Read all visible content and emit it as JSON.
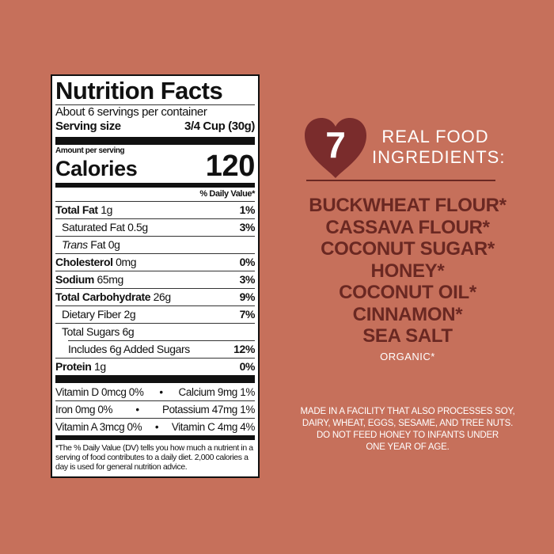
{
  "colors": {
    "background": "#c6705b",
    "ingredient_text": "#6a2822",
    "heart": "#7a2c2c"
  },
  "nutrition": {
    "title": "Nutrition Facts",
    "servings": "About 6 servings per container",
    "serving_size_label": "Serving size",
    "serving_size_value": "3/4 Cup (30g)",
    "amount_per_serving": "Amount per serving",
    "calories_label": "Calories",
    "calories_value": "120",
    "dv_header": "% Daily Value*",
    "rows": [
      {
        "name": "Total Fat",
        "amount": "1g",
        "dv": "1%"
      },
      {
        "name": "Saturated Fat",
        "amount": "0.5g",
        "dv": "3%"
      },
      {
        "name_italic": "Trans",
        "name": "Fat",
        "amount": "0g",
        "dv": ""
      },
      {
        "name": "Cholesterol",
        "amount": "0mg",
        "dv": "0%"
      },
      {
        "name": "Sodium",
        "amount": "65mg",
        "dv": "3%"
      },
      {
        "name": "Total Carbohydrate",
        "amount": "26g",
        "dv": "9%"
      },
      {
        "name": "Dietary Fiber",
        "amount": "2g",
        "dv": "7%"
      },
      {
        "name": "Total Sugars",
        "amount": "6g",
        "dv": ""
      },
      {
        "name": "Includes 6g Added Sugars",
        "amount": "",
        "dv": "12%"
      },
      {
        "name": "Protein",
        "amount": "1g",
        "dv": "0%"
      }
    ],
    "vitamins": [
      {
        "left": "Vitamin D 0mcg 0%",
        "right": "Calcium 9mg 1%"
      },
      {
        "left": "Iron 0mg 0%",
        "right": "Potassium 47mg 1%"
      },
      {
        "left": "Vitamin A 3mcg 0%",
        "right": "Vitamin C 4mg 4%"
      }
    ],
    "bullet": "•",
    "footnote": "*The % Daily Value (DV) tells you how much a nutrient in a serving of food contributes to a daily diet. 2,000 calories a day is used for general nutrition advice."
  },
  "ingredients": {
    "count": "7",
    "heading_line1": "REAL FOOD",
    "heading_line2": "INGREDIENTS:",
    "items": [
      "BUCKWHEAT FLOUR*",
      "CASSAVA FLOUR*",
      "COCONUT SUGAR*",
      "HONEY*",
      "COCONUT OIL*",
      "CINNAMON*",
      "SEA SALT"
    ],
    "organic_note": "ORGANIC*"
  },
  "warning": [
    "MADE IN A FACILITY THAT ALSO PROCESSES SOY,",
    "DAIRY, WHEAT, EGGS, SESAME, AND TREE NUTS.",
    "DO NOT FEED HONEY TO INFANTS UNDER",
    "ONE YEAR OF AGE."
  ]
}
